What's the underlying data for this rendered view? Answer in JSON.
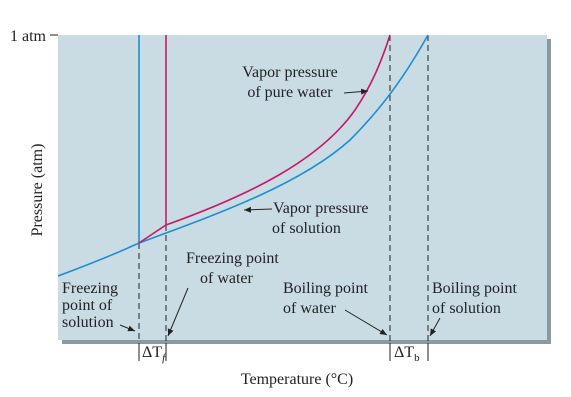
{
  "axis_labels": {
    "y_top": "1 atm",
    "y": "Pressure (atm)",
    "x": "Temperature (°C)"
  },
  "annotations": {
    "vapor_pure": [
      "Vapor pressure",
      "of pure water"
    ],
    "vapor_solution": [
      "Vapor pressure",
      "of solution"
    ],
    "freezing_water": [
      "Freezing point",
      "of water"
    ],
    "freezing_solution": [
      "Freezing",
      "point of",
      "solution"
    ],
    "boiling_water": [
      "Boiling point",
      "of water"
    ],
    "boiling_solution": [
      "Boiling point",
      "of solution"
    ]
  },
  "deltas": {
    "freezing": {
      "symbol": "ΔT",
      "subscript": "f"
    },
    "boiling": {
      "symbol": "ΔT",
      "subscript": "b"
    }
  }
}
